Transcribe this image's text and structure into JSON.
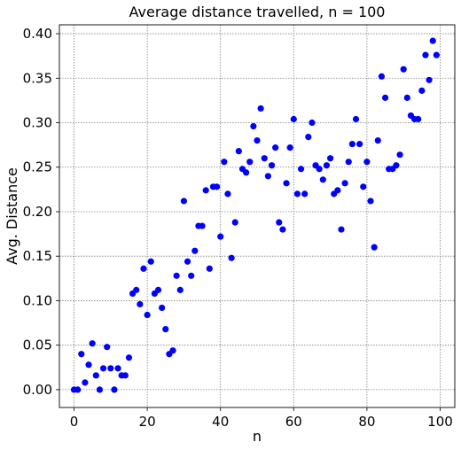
{
  "chart_data": {
    "type": "scatter",
    "title": "Average distance travelled, n = 100",
    "xlabel": "n",
    "ylabel": "Avg. Distance",
    "xlim": [
      -4,
      104
    ],
    "ylim": [
      -0.02,
      0.41
    ],
    "xticks": [
      0,
      20,
      40,
      60,
      80,
      100
    ],
    "xtick_labels": [
      "0",
      "20",
      "40",
      "60",
      "80",
      "100"
    ],
    "yticks": [
      0.0,
      0.05,
      0.1,
      0.15,
      0.2,
      0.25,
      0.3,
      0.35,
      0.4
    ],
    "ytick_labels": [
      "0.00",
      "0.05",
      "0.10",
      "0.15",
      "0.20",
      "0.25",
      "0.30",
      "0.35",
      "0.40"
    ],
    "grid": true,
    "marker_color": "#0000ff",
    "series": [
      {
        "x": [
          0,
          1,
          2,
          3,
          4,
          5,
          6,
          7,
          8,
          9,
          10,
          11,
          12,
          13,
          14,
          15,
          16,
          17,
          18,
          19,
          20,
          21,
          22,
          23,
          24,
          25,
          26,
          27,
          28,
          29,
          30,
          31,
          32,
          33,
          34,
          35,
          36,
          37,
          38,
          39,
          40,
          41,
          42,
          43,
          44,
          45,
          46,
          47,
          48,
          49,
          50,
          51,
          52,
          53,
          54,
          55,
          56,
          57,
          58,
          59,
          60,
          61,
          62,
          63,
          64,
          65,
          66,
          67,
          68,
          69,
          70,
          71,
          72,
          73,
          74,
          75,
          76,
          77,
          78,
          79,
          80,
          81,
          82,
          83,
          84,
          85,
          86,
          87,
          88,
          89,
          90,
          91,
          92,
          93,
          94,
          95,
          96,
          97,
          98,
          99
        ],
        "y": [
          0.0,
          0.0,
          0.04,
          0.008,
          0.028,
          0.052,
          0.016,
          0.0,
          0.024,
          0.048,
          0.024,
          0.0,
          0.024,
          0.016,
          0.016,
          0.036,
          0.108,
          0.112,
          0.096,
          0.136,
          0.084,
          0.144,
          0.108,
          0.112,
          0.092,
          0.068,
          0.04,
          0.044,
          0.128,
          0.112,
          0.212,
          0.144,
          0.128,
          0.156,
          0.184,
          0.184,
          0.224,
          0.136,
          0.228,
          0.228,
          0.172,
          0.256,
          0.22,
          0.148,
          0.188,
          0.268,
          0.248,
          0.244,
          0.256,
          0.296,
          0.28,
          0.316,
          0.26,
          0.24,
          0.252,
          0.272,
          0.188,
          0.18,
          0.232,
          0.272,
          0.304,
          0.22,
          0.248,
          0.22,
          0.284,
          0.3,
          0.252,
          0.248,
          0.236,
          0.252,
          0.26,
          0.22,
          0.224,
          0.18,
          0.232,
          0.256,
          0.276,
          0.304,
          0.276,
          0.228,
          0.256,
          0.212,
          0.16,
          0.28,
          0.352,
          0.328,
          0.248,
          0.248,
          0.252,
          0.264,
          0.36,
          0.328,
          0.308,
          0.304,
          0.304,
          0.336,
          0.376,
          0.348,
          0.392,
          0.376
        ]
      }
    ]
  }
}
